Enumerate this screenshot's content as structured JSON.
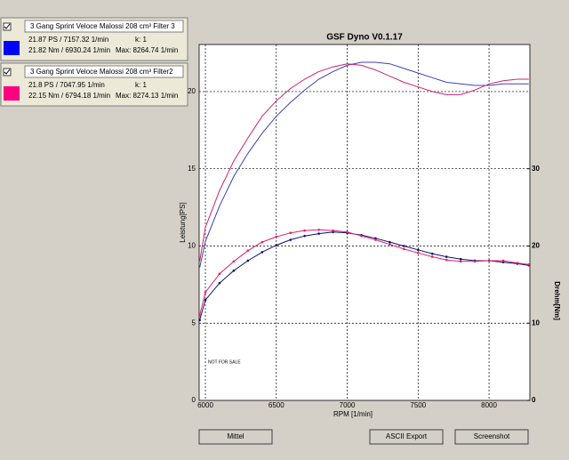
{
  "panels": [
    {
      "name": "3 Gang Sprint Veloce Malossi 208 cm³ Filter 3",
      "power": "21.87 PS / 7157.32 1/min",
      "k": "k: 1",
      "torque": "21.82 Nm / 6930.24 1/min",
      "max": "Max: 8264.74 1/min",
      "color": "#0000ff"
    },
    {
      "name": "3 Gang Sprint Veloce Malossi 208 cm³ Filter2",
      "power": "21.8 PS / 7047.95 1/min",
      "k": "k: 1",
      "torque": "22.15 Nm / 6794.18 1/min",
      "max": "Max: 8274.13 1/min",
      "color": "#ff0080"
    }
  ],
  "buttons": [
    "Mittel",
    "ASCII Export",
    "Screenshot"
  ],
  "chart_data": {
    "type": "line",
    "title": "GSF Dyno V0.1.17",
    "x_label": "RPM [1/min]",
    "y_label": "Leistung[PS]",
    "y2_label": "Drehm[Nm]",
    "annotation": "NOT FOR SALE",
    "x": [
      5960,
      6000,
      6100,
      6200,
      6300,
      6400,
      6500,
      6600,
      6700,
      6800,
      6900,
      7000,
      7100,
      7200,
      7300,
      7400,
      7500,
      7600,
      7700,
      7800,
      7900,
      8000,
      8100,
      8200,
      8280
    ],
    "series": [
      {
        "color": "#4040b0",
        "values": [
          8.6,
          10.3,
          12.6,
          14.5,
          16.0,
          17.3,
          18.4,
          19.3,
          20.1,
          20.8,
          21.3,
          21.7,
          21.9,
          21.9,
          21.8,
          21.5,
          21.2,
          20.9,
          20.6,
          20.5,
          20.4,
          20.4,
          20.5,
          20.5,
          20.5
        ]
      },
      {
        "color": "#d02070",
        "values": [
          9.0,
          11.2,
          13.6,
          15.5,
          17.0,
          18.4,
          19.4,
          20.2,
          20.8,
          21.3,
          21.6,
          21.8,
          21.7,
          21.4,
          21.0,
          20.6,
          20.3,
          20.0,
          19.8,
          19.8,
          20.1,
          20.5,
          20.7,
          20.8,
          20.8
        ]
      },
      {
        "color": "#101070",
        "axis": "y2",
        "values": [
          10.4,
          13.0,
          15.2,
          16.8,
          18.1,
          19.2,
          20.1,
          20.8,
          21.3,
          21.6,
          21.8,
          21.7,
          21.4,
          21.0,
          20.5,
          20.0,
          19.5,
          19.0,
          18.6,
          18.3,
          18.1,
          18.1,
          17.9,
          17.7,
          17.5
        ]
      },
      {
        "color": "#e02070",
        "axis": "y2",
        "values": [
          11.0,
          14.0,
          16.4,
          18.0,
          19.4,
          20.5,
          21.2,
          21.7,
          22.0,
          22.1,
          22.0,
          21.8,
          21.3,
          20.8,
          20.2,
          19.6,
          19.1,
          18.6,
          18.2,
          18.0,
          18.0,
          18.1,
          18.1,
          17.8,
          17.6
        ]
      }
    ],
    "xlim": [
      5956,
      8288
    ],
    "xticks": [
      6000,
      6500,
      7000,
      7500,
      8000
    ],
    "ylim": [
      0,
      23.05
    ],
    "yticks": [
      0,
      5,
      10,
      15,
      20
    ],
    "y2lim": [
      0,
      46.1
    ],
    "y2ticks": [
      0,
      10,
      20,
      30
    ],
    "grid": true
  }
}
